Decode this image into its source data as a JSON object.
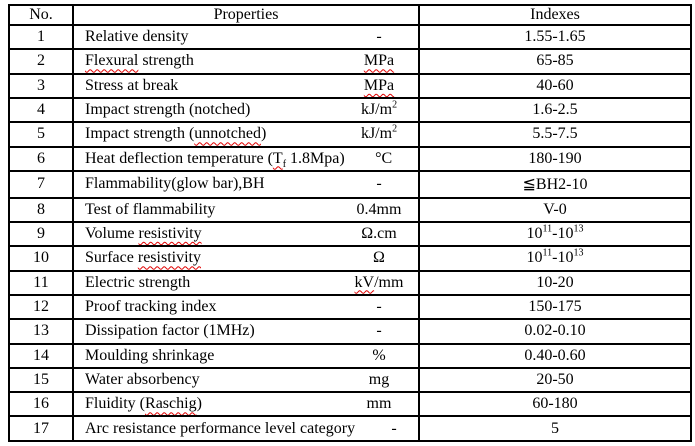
{
  "page": {
    "background": "#ffffff",
    "colors": {
      "border": "#000000",
      "text": "#000000",
      "squiggle": "#e00000"
    }
  },
  "table": {
    "headers": {
      "no": "No.",
      "properties": "Properties",
      "indexes": "Indexes"
    },
    "rows": [
      {
        "no": "1",
        "property": [
          {
            "t": "Relative density"
          }
        ],
        "unit": [
          {
            "t": "-"
          }
        ],
        "index": [
          {
            "t": "1.55-1.65"
          }
        ]
      },
      {
        "no": "2",
        "property": [
          {
            "t": "Flexural",
            "sq": true
          },
          {
            "t": " strength"
          }
        ],
        "unit": [
          {
            "t": "MPa",
            "sq": true
          }
        ],
        "index": [
          {
            "t": "65-85"
          }
        ]
      },
      {
        "no": "3",
        "property": [
          {
            "t": "Stress at break"
          }
        ],
        "unit": [
          {
            "t": "MPa",
            "sq": true
          }
        ],
        "index": [
          {
            "t": "40-60"
          }
        ]
      },
      {
        "no": "4",
        "property": [
          {
            "t": "Impact strength (notched)"
          }
        ],
        "unit": [
          {
            "t": "kJ/m"
          },
          {
            "t": "2",
            "sup": true
          }
        ],
        "index": [
          {
            "t": "1.6-2.5"
          }
        ]
      },
      {
        "no": "5",
        "property": [
          {
            "t": "Impact strength ("
          },
          {
            "t": "unnotched",
            "sq": true
          },
          {
            "t": ")"
          }
        ],
        "unit": [
          {
            "t": "kJ/m"
          },
          {
            "t": "2",
            "sup": true
          }
        ],
        "index": [
          {
            "t": "5.5-7.5"
          }
        ]
      },
      {
        "no": "6",
        "property": [
          {
            "t": "Heat deflection temperature ("
          },
          {
            "t": "T",
            "sq": true
          },
          {
            "t": "f",
            "sub": true,
            "sq": true
          },
          {
            "t": " 1.8Mpa)"
          }
        ],
        "unit": [
          {
            "t": "°C"
          }
        ],
        "index": [
          {
            "t": "180-190"
          }
        ]
      },
      {
        "no": "7",
        "property": [
          {
            "t": "Flammability(glow bar),BH"
          }
        ],
        "unit": [
          {
            "t": "-"
          }
        ],
        "index": [
          {
            "t": "≦BH2-10"
          }
        ]
      },
      {
        "no": "8",
        "property": [
          {
            "t": "Test of flammability"
          }
        ],
        "unit": [
          {
            "t": "0.4mm"
          }
        ],
        "index": [
          {
            "t": "V-0"
          }
        ]
      },
      {
        "no": "9",
        "property": [
          {
            "t": "Volume "
          },
          {
            "t": "resistivity",
            "sq": true
          }
        ],
        "unit": [
          {
            "t": "Ω.cm"
          }
        ],
        "index": [
          {
            "t": "10"
          },
          {
            "t": "11",
            "sup": true
          },
          {
            "t": "-10"
          },
          {
            "t": "13",
            "sup": true
          }
        ]
      },
      {
        "no": "10",
        "property": [
          {
            "t": "Surface "
          },
          {
            "t": "resistivity",
            "sq": true
          }
        ],
        "unit": [
          {
            "t": "Ω"
          }
        ],
        "index": [
          {
            "t": "10"
          },
          {
            "t": "11",
            "sup": true
          },
          {
            "t": "-10"
          },
          {
            "t": "13",
            "sup": true
          }
        ]
      },
      {
        "no": "11",
        "property": [
          {
            "t": "Electric strength"
          }
        ],
        "unit": [
          {
            "t": "kV",
            "sq": true
          },
          {
            "t": "/mm"
          }
        ],
        "index": [
          {
            "t": "10-20"
          }
        ]
      },
      {
        "no": "12",
        "property": [
          {
            "t": "Proof tracking index"
          }
        ],
        "unit": [
          {
            "t": "-"
          }
        ],
        "index": [
          {
            "t": "150-175"
          }
        ]
      },
      {
        "no": "13",
        "property": [
          {
            "t": "Dissipation factor (1MHz)"
          }
        ],
        "unit": [
          {
            "t": "-"
          }
        ],
        "index": [
          {
            "t": "0.02-0.10"
          }
        ]
      },
      {
        "no": "14",
        "property": [
          {
            "t": "Moulding shrinkage"
          }
        ],
        "unit": [
          {
            "t": "%"
          }
        ],
        "index": [
          {
            "t": "0.40-0.60"
          }
        ]
      },
      {
        "no": "15",
        "property": [
          {
            "t": "Water absorbency"
          }
        ],
        "unit": [
          {
            "t": "mg"
          }
        ],
        "index": [
          {
            "t": "20-50"
          }
        ]
      },
      {
        "no": "16",
        "property": [
          {
            "t": "Fluidity ("
          },
          {
            "t": "Raschig",
            "sq": true
          },
          {
            "t": ")"
          }
        ],
        "unit": [
          {
            "t": "mm"
          }
        ],
        "index": [
          {
            "t": "60-180"
          }
        ]
      },
      {
        "no": "17",
        "property": [
          {
            "t": "Arc resistance performance level category"
          }
        ],
        "unit": [
          {
            "t": "-"
          }
        ],
        "index": [
          {
            "t": "5"
          }
        ]
      }
    ]
  }
}
